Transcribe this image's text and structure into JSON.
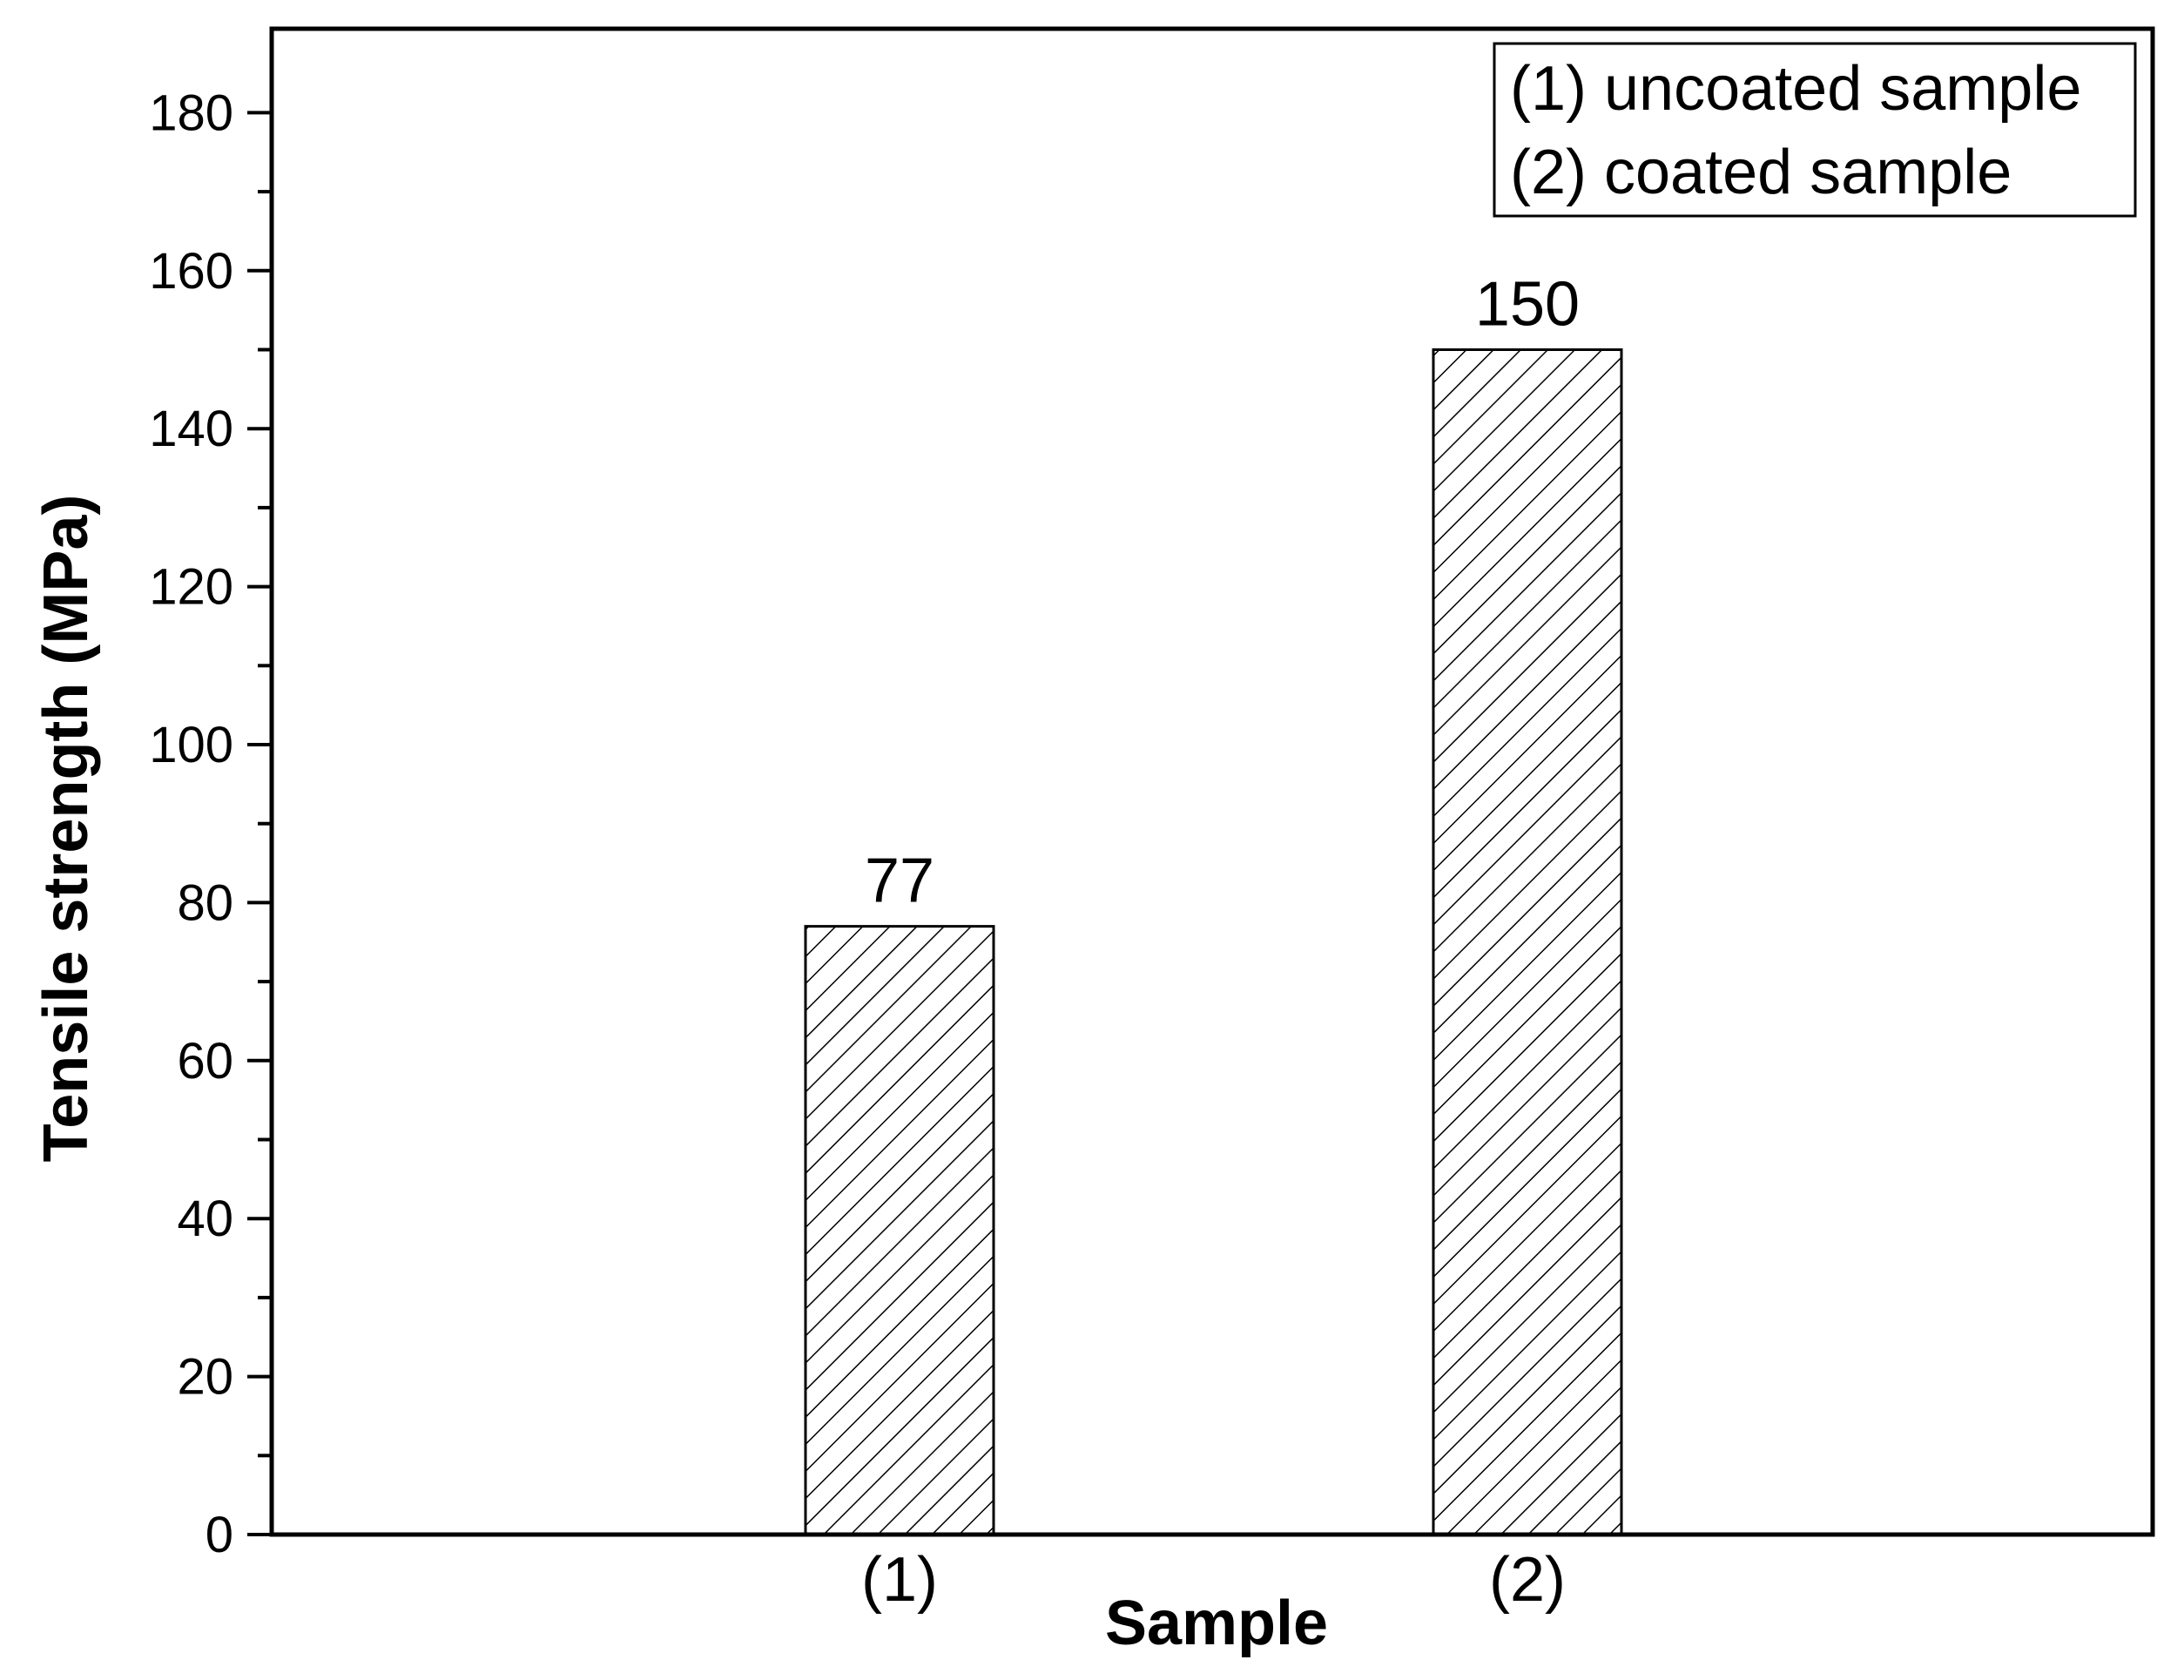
{
  "chart_data": {
    "type": "bar",
    "categories": [
      "(1)",
      "(2)"
    ],
    "values": [
      77,
      150
    ],
    "data_labels": [
      "77",
      "150"
    ],
    "xlabel": "Sample",
    "ylabel": "Tensile strength (MPa)",
    "ylim": [
      0,
      190
    ],
    "yticks": [
      0,
      20,
      40,
      60,
      80,
      100,
      120,
      140,
      160,
      180
    ],
    "yticks_labels": [
      "0",
      "20",
      "40",
      "60",
      "80",
      "100",
      "120",
      "140",
      "160",
      "180"
    ],
    "grid": false,
    "bar_fill": "diagonal hatch",
    "legend": {
      "placement": "top-right",
      "entries": [
        "(1) uncoated sample",
        "(2) coated sample"
      ]
    },
    "colors": {
      "bar_stroke": "#000000",
      "hatch": "#000000",
      "background": "#ffffff"
    }
  }
}
